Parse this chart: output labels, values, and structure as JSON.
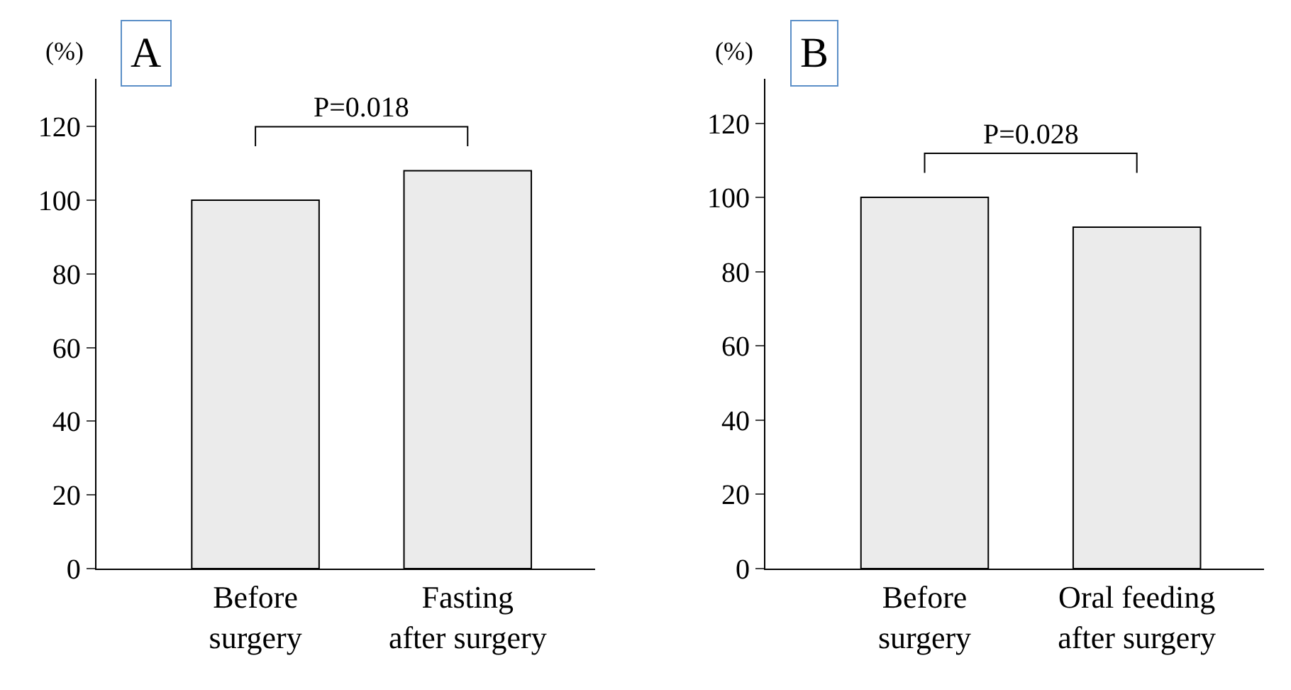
{
  "chart_data": [
    {
      "type": "bar",
      "categories": [
        "Before surgery",
        "Fasting after surgery"
      ],
      "values": [
        100,
        108
      ],
      "color": "#ebebeb",
      "ylabel": "(%)",
      "ylim": [
        0,
        133
      ],
      "yticks": [
        0,
        20,
        40,
        60,
        80,
        100,
        120
      ],
      "annotations": [
        "A",
        "P=0.018"
      ]
    },
    {
      "type": "bar",
      "categories": [
        "Before surgery",
        "Oral feeding after surgery"
      ],
      "values": [
        100,
        92
      ],
      "color": "#ebebeb",
      "ylabel": "(%)",
      "ylim": [
        0,
        132
      ],
      "yticks": [
        0,
        20,
        40,
        60,
        80,
        100,
        120
      ],
      "annotations": [
        "B",
        "P=0.028"
      ]
    }
  ]
}
